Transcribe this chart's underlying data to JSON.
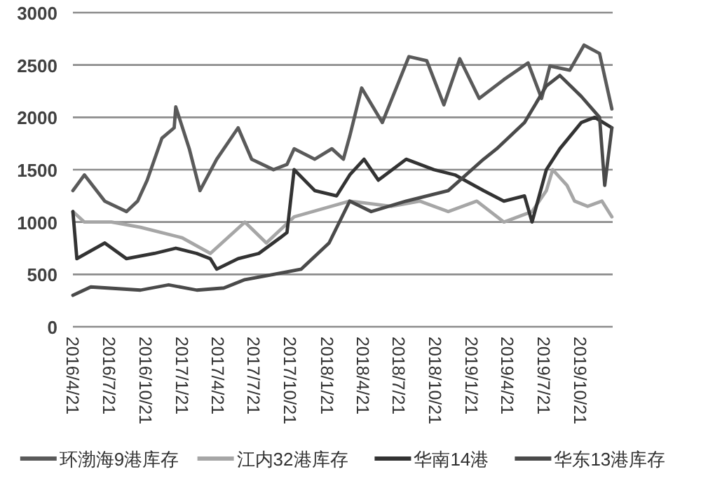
{
  "chart_data": {
    "type": "line",
    "ylim": [
      0,
      3000
    ],
    "yticks": [
      0,
      500,
      1000,
      1500,
      2000,
      2500,
      3000
    ],
    "xlim": [
      "2016-04-21",
      "2020-01-10"
    ],
    "xticks": [
      {
        "value": "2016-04-21",
        "label": "2016/4/21"
      },
      {
        "value": "2016-07-21",
        "label": "2016/7/21"
      },
      {
        "value": "2016-10-21",
        "label": "2016/10/21"
      },
      {
        "value": "2017-01-21",
        "label": "2017/1/21"
      },
      {
        "value": "2017-04-21",
        "label": "2017/4/21"
      },
      {
        "value": "2017-07-21",
        "label": "2017/7/21"
      },
      {
        "value": "2017-10-21",
        "label": "2017/10/21"
      },
      {
        "value": "2018-01-21",
        "label": "2018/1/21"
      },
      {
        "value": "2018-04-21",
        "label": "2018/4/21"
      },
      {
        "value": "2018-07-21",
        "label": "2018/7/21"
      },
      {
        "value": "2018-10-21",
        "label": "2018/10/21"
      },
      {
        "value": "2019-01-21",
        "label": "2019/1/21"
      },
      {
        "value": "2019-04-21",
        "label": "2019/4/21"
      },
      {
        "value": "2019-07-21",
        "label": "2019/7/21"
      },
      {
        "value": "2019-10-21",
        "label": "2019/10/21"
      }
    ],
    "grid": "y",
    "legend": "bottom",
    "marker": "none",
    "line_style": "solid",
    "series": [
      {
        "name": "环渤海9港库存",
        "color": "#5a5a5a",
        "x": [
          "2016-04-21",
          "2016-05-20",
          "2016-07-10",
          "2016-09-03",
          "2016-10-01",
          "2016-10-25",
          "2016-12-01",
          "2017-01-01",
          "2017-01-05",
          "2017-02-08",
          "2017-03-07",
          "2017-04-18",
          "2017-06-11",
          "2017-07-15",
          "2017-09-08",
          "2017-10-12",
          "2017-10-30",
          "2017-12-21",
          "2018-02-02",
          "2018-03-03",
          "2018-03-19",
          "2018-04-18",
          "2018-06-09",
          "2018-08-15",
          "2018-09-29",
          "2018-11-11",
          "2018-12-21",
          "2019-02-08",
          "2019-04-11",
          "2019-06-11",
          "2019-07-15",
          "2019-08-05",
          "2019-09-24",
          "2019-10-30",
          "2019-12-08",
          "2020-01-08"
        ],
        "values": [
          1300,
          1450,
          1200,
          1100,
          1200,
          1400,
          1800,
          1900,
          2100,
          1700,
          1300,
          1600,
          1900,
          1600,
          1500,
          1550,
          1700,
          1600,
          1700,
          1600,
          1820,
          2280,
          1950,
          2580,
          2540,
          2120,
          2560,
          2180,
          2360,
          2520,
          2180,
          2490,
          2450,
          2690,
          2610,
          2080
        ]
      },
      {
        "name": "江内32港库存",
        "color": "#a6a6a6",
        "x": [
          "2016-04-21",
          "2016-05-20",
          "2016-07-27",
          "2016-10-08",
          "2017-01-21",
          "2017-04-02",
          "2017-06-28",
          "2017-08-21",
          "2017-10-30",
          "2018-03-19",
          "2018-07-03",
          "2018-09-11",
          "2018-11-22",
          "2019-02-02",
          "2019-04-11",
          "2019-06-21",
          "2019-07-27",
          "2019-08-12",
          "2019-09-17",
          "2019-10-06",
          "2019-11-08",
          "2019-12-14",
          "2020-01-08"
        ],
        "values": [
          1100,
          1000,
          1000,
          950,
          850,
          700,
          1000,
          800,
          1050,
          1200,
          1150,
          1200,
          1100,
          1200,
          1000,
          1100,
          1300,
          1500,
          1350,
          1200,
          1150,
          1200,
          1050
        ]
      },
      {
        "name": "华南14港",
        "color": "#333333",
        "x": [
          "2016-04-21",
          "2016-05-01",
          "2016-07-10",
          "2016-09-03",
          "2016-11-12",
          "2017-01-05",
          "2017-02-27",
          "2017-04-02",
          "2017-04-18",
          "2017-06-11",
          "2017-08-02",
          "2017-09-25",
          "2017-10-12",
          "2017-10-30",
          "2017-12-21",
          "2018-02-14",
          "2018-03-19",
          "2018-04-24",
          "2018-05-30",
          "2018-08-08",
          "2018-10-17",
          "2018-12-09",
          "2019-02-19",
          "2019-04-11",
          "2019-06-02",
          "2019-06-21",
          "2019-07-27",
          "2019-08-30",
          "2019-10-23",
          "2019-11-26",
          "2020-01-08"
        ],
        "values": [
          1100,
          650,
          800,
          650,
          700,
          750,
          700,
          650,
          550,
          650,
          700,
          850,
          900,
          1500,
          1300,
          1250,
          1450,
          1600,
          1400,
          1600,
          1500,
          1450,
          1300,
          1200,
          1250,
          1000,
          1500,
          1700,
          1950,
          2000,
          1900
        ]
      },
      {
        "name": "华东13港库存",
        "color": "#4a4a4a",
        "x": [
          "2016-04-21",
          "2016-06-05",
          "2016-10-08",
          "2016-12-18",
          "2017-02-27",
          "2017-05-06",
          "2017-06-28",
          "2017-09-08",
          "2017-11-17",
          "2018-01-26",
          "2018-03-19",
          "2018-05-12",
          "2018-08-08",
          "2018-11-22",
          "2019-02-19",
          "2019-03-24",
          "2019-06-02",
          "2019-07-27",
          "2019-08-30",
          "2019-10-23",
          "2019-12-08",
          "2019-12-21",
          "2020-01-08"
        ],
        "values": [
          300,
          380,
          350,
          400,
          350,
          370,
          450,
          500,
          550,
          800,
          1200,
          1100,
          1200,
          1300,
          1600,
          1700,
          1950,
          2300,
          2400,
          2200,
          2000,
          1350,
          1900
        ]
      }
    ]
  }
}
